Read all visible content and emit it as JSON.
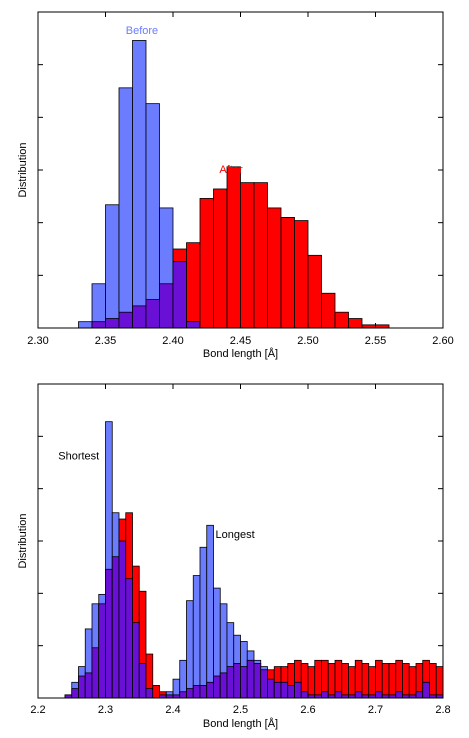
{
  "colors": {
    "before": "#6b7cff",
    "after": "#ff0000",
    "overlap": "#6a10d6",
    "before_label": "#6b7cff",
    "after_label": "#ff0000",
    "frame": "#000000"
  },
  "chart_data": [
    {
      "type": "bar",
      "title": "",
      "xlabel": "Bond length [Å]",
      "ylabel": "Distribution",
      "xlim": [
        2.3,
        2.6
      ],
      "ylim": [
        0,
        1.0
      ],
      "grid": false,
      "x_ticks": [
        "2.30",
        "2.35",
        "2.40",
        "2.45",
        "2.50",
        "2.55",
        "2.60"
      ],
      "x_tick_values": [
        2.3,
        2.35,
        2.4,
        2.45,
        2.5,
        2.55,
        2.6
      ],
      "y_ticks_labeled": false,
      "bin_width": 0.01,
      "annotations": [
        {
          "text": "Before",
          "x": 2.377,
          "y": 0.93,
          "series": "Before"
        },
        {
          "text": "After",
          "x": 2.443,
          "y": 0.49,
          "series": "After"
        }
      ],
      "series": [
        {
          "name": "Before",
          "bin_starts": [
            2.33,
            2.34,
            2.35,
            2.36,
            2.37,
            2.38,
            2.39,
            2.4,
            2.41
          ],
          "values": [
            0.02,
            0.14,
            0.39,
            0.76,
            0.91,
            0.71,
            0.38,
            0.21,
            0.02
          ]
        },
        {
          "name": "After",
          "bin_starts": [
            2.34,
            2.35,
            2.36,
            2.37,
            2.38,
            2.39,
            2.4,
            2.41,
            2.42,
            2.43,
            2.44,
            2.45,
            2.46,
            2.47,
            2.48,
            2.49,
            2.5,
            2.51,
            2.52,
            2.53,
            2.54,
            2.55
          ],
          "values": [
            0.02,
            0.03,
            0.05,
            0.07,
            0.09,
            0.14,
            0.25,
            0.27,
            0.41,
            0.44,
            0.51,
            0.46,
            0.46,
            0.38,
            0.35,
            0.34,
            0.23,
            0.11,
            0.05,
            0.03,
            0.01,
            0.01
          ]
        }
      ]
    },
    {
      "type": "bar",
      "title": "",
      "xlabel": "Bond length [Å]",
      "ylabel": "Distribution",
      "xlim": [
        2.2,
        2.8
      ],
      "ylim": [
        0,
        1.0
      ],
      "grid": false,
      "x_ticks": [
        "2.2",
        "2.3",
        "2.4",
        "2.5",
        "2.6",
        "2.7",
        "2.8"
      ],
      "x_tick_values": [
        2.2,
        2.3,
        2.4,
        2.5,
        2.6,
        2.7,
        2.8
      ],
      "y_ticks_labeled": false,
      "bin_width": 0.01,
      "annotations": [
        {
          "text": "Shortest",
          "x": 2.23,
          "y": 0.76
        },
        {
          "text": "Longest",
          "x": 2.463,
          "y": 0.51
        }
      ],
      "series": [
        {
          "name": "Before",
          "bin_starts": [
            2.2,
            2.21,
            2.22,
            2.23,
            2.24,
            2.25,
            2.26,
            2.27,
            2.28,
            2.29,
            2.3,
            2.31,
            2.32,
            2.33,
            2.34,
            2.35,
            2.36,
            2.37,
            2.38,
            2.39,
            2.4,
            2.41,
            2.42,
            2.43,
            2.44,
            2.45,
            2.46,
            2.47,
            2.48,
            2.49,
            2.5,
            2.51,
            2.52,
            2.53,
            2.54,
            2.55,
            2.56,
            2.57,
            2.58,
            2.59,
            2.6,
            2.61,
            2.62,
            2.63,
            2.64,
            2.65,
            2.66,
            2.67,
            2.68,
            2.69,
            2.7,
            2.71,
            2.72,
            2.73,
            2.74,
            2.75,
            2.76,
            2.77,
            2.78,
            2.79
          ],
          "values": [
            0.0,
            0.0,
            0.0,
            0.0,
            0.01,
            0.05,
            0.1,
            0.22,
            0.3,
            0.33,
            0.88,
            0.59,
            0.5,
            0.38,
            0.24,
            0.11,
            0.03,
            0.0,
            0.01,
            0.02,
            0.06,
            0.12,
            0.31,
            0.39,
            0.48,
            0.55,
            0.35,
            0.3,
            0.24,
            0.2,
            0.18,
            0.15,
            0.12,
            0.1,
            0.06,
            0.05,
            0.05,
            0.04,
            0.05,
            0.02,
            0.01,
            0.01,
            0.02,
            0.01,
            0.02,
            0.01,
            0.01,
            0.02,
            0.01,
            0.01,
            0.02,
            0.01,
            0.01,
            0.02,
            0.01,
            0.01,
            0.02,
            0.05,
            0.01,
            0.01
          ]
        },
        {
          "name": "After",
          "bin_starts": [
            2.2,
            2.21,
            2.22,
            2.23,
            2.24,
            2.25,
            2.26,
            2.27,
            2.28,
            2.29,
            2.3,
            2.31,
            2.32,
            2.33,
            2.34,
            2.35,
            2.36,
            2.37,
            2.38,
            2.39,
            2.4,
            2.41,
            2.42,
            2.43,
            2.44,
            2.45,
            2.46,
            2.47,
            2.48,
            2.49,
            2.5,
            2.51,
            2.52,
            2.53,
            2.54,
            2.55,
            2.56,
            2.57,
            2.58,
            2.59,
            2.6,
            2.61,
            2.62,
            2.63,
            2.64,
            2.65,
            2.66,
            2.67,
            2.68,
            2.69,
            2.7,
            2.71,
            2.72,
            2.73,
            2.74,
            2.75,
            2.76,
            2.77,
            2.78,
            2.79
          ],
          "values": [
            0.0,
            0.0,
            0.0,
            0.0,
            0.01,
            0.03,
            0.07,
            0.08,
            0.16,
            0.3,
            0.41,
            0.45,
            0.57,
            0.59,
            0.42,
            0.34,
            0.14,
            0.04,
            0.02,
            0.01,
            0.01,
            0.02,
            0.03,
            0.04,
            0.04,
            0.05,
            0.07,
            0.08,
            0.1,
            0.11,
            0.1,
            0.12,
            0.11,
            0.09,
            0.09,
            0.1,
            0.1,
            0.11,
            0.12,
            0.11,
            0.1,
            0.12,
            0.12,
            0.11,
            0.12,
            0.11,
            0.1,
            0.12,
            0.11,
            0.1,
            0.12,
            0.11,
            0.11,
            0.12,
            0.11,
            0.1,
            0.11,
            0.12,
            0.11,
            0.1
          ]
        }
      ]
    }
  ]
}
